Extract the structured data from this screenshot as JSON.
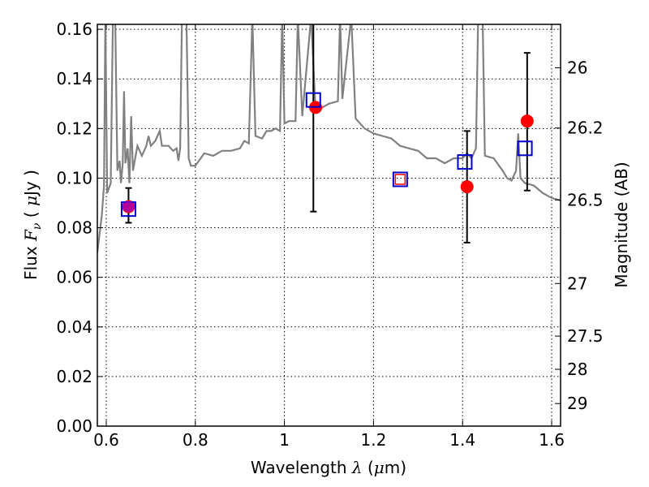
{
  "chart_data": {
    "type": "scatter",
    "xlabel": "Wavelength  λ (μm)",
    "ylabel": "Flux  Fν  ( μJy )",
    "y2label": "Magnitude (AB)",
    "xlim": [
      0.58,
      1.62
    ],
    "ylim": [
      0.0,
      0.162
    ],
    "grid": true,
    "x_ticks": [
      0.6,
      0.8,
      1.0,
      1.2,
      1.4,
      1.6
    ],
    "x_tick_labels": [
      "0.6",
      "0.8",
      "1",
      "1.2",
      "1.4",
      "1.6"
    ],
    "y_ticks": [
      0.0,
      0.02,
      0.04,
      0.06,
      0.08,
      0.1,
      0.12,
      0.14,
      0.16
    ],
    "y_tick_labels": [
      "0.00",
      "0.02",
      "0.04",
      "0.06",
      "0.08",
      "0.10",
      "0.12",
      "0.14",
      "0.16"
    ],
    "y2_ticks": [
      {
        "label": "26",
        "flux": 0.1445
      },
      {
        "label": "26.2",
        "flux": 0.1202
      },
      {
        "label": "26.5",
        "flux": 0.0912
      },
      {
        "label": "27",
        "flux": 0.0575
      },
      {
        "label": "27.5",
        "flux": 0.0363
      },
      {
        "label": "28",
        "flux": 0.0229
      },
      {
        "label": "29",
        "flux": 0.0091
      }
    ],
    "series": [
      {
        "kind": "spectrum",
        "color": "#808080",
        "points": [
          [
            0.58,
            0.07
          ],
          [
            0.59,
            0.085
          ],
          [
            0.595,
            0.097
          ],
          [
            0.598,
            0.165
          ],
          [
            0.602,
            0.094
          ],
          [
            0.61,
            0.098
          ],
          [
            0.615,
            0.165
          ],
          [
            0.62,
            0.165
          ],
          [
            0.625,
            0.103
          ],
          [
            0.63,
            0.107
          ],
          [
            0.633,
            0.098
          ],
          [
            0.637,
            0.106
          ],
          [
            0.64,
            0.135
          ],
          [
            0.643,
            0.106
          ],
          [
            0.648,
            0.112
          ],
          [
            0.652,
            0.098
          ],
          [
            0.656,
            0.125
          ],
          [
            0.66,
            0.103
          ],
          [
            0.67,
            0.113
          ],
          [
            0.68,
            0.109
          ],
          [
            0.69,
            0.113
          ],
          [
            0.695,
            0.117
          ],
          [
            0.7,
            0.113
          ],
          [
            0.71,
            0.115
          ],
          [
            0.72,
            0.119
          ],
          [
            0.725,
            0.113
          ],
          [
            0.74,
            0.113
          ],
          [
            0.75,
            0.111
          ],
          [
            0.758,
            0.112
          ],
          [
            0.762,
            0.107
          ],
          [
            0.766,
            0.112
          ],
          [
            0.77,
            0.165
          ],
          [
            0.78,
            0.165
          ],
          [
            0.785,
            0.108
          ],
          [
            0.79,
            0.105
          ],
          [
            0.8,
            0.105
          ],
          [
            0.82,
            0.11
          ],
          [
            0.84,
            0.109
          ],
          [
            0.86,
            0.111
          ],
          [
            0.88,
            0.111
          ],
          [
            0.9,
            0.112
          ],
          [
            0.91,
            0.115
          ],
          [
            0.92,
            0.114
          ],
          [
            0.928,
            0.165
          ],
          [
            0.935,
            0.117
          ],
          [
            0.95,
            0.116
          ],
          [
            0.96,
            0.119
          ],
          [
            0.97,
            0.119
          ],
          [
            0.98,
            0.12
          ],
          [
            0.99,
            0.119
          ],
          [
            0.995,
            0.165
          ],
          [
            1.0,
            0.122
          ],
          [
            1.01,
            0.123
          ],
          [
            1.025,
            0.123
          ],
          [
            1.03,
            0.165
          ],
          [
            1.04,
            0.125
          ],
          [
            1.06,
            0.165
          ],
          [
            1.07,
            0.127
          ],
          [
            1.08,
            0.128
          ],
          [
            1.1,
            0.13
          ],
          [
            1.12,
            0.131
          ],
          [
            1.125,
            0.165
          ],
          [
            1.13,
            0.132
          ],
          [
            1.15,
            0.165
          ],
          [
            1.16,
            0.124
          ],
          [
            1.18,
            0.12
          ],
          [
            1.2,
            0.118
          ],
          [
            1.22,
            0.117
          ],
          [
            1.24,
            0.116
          ],
          [
            1.26,
            0.113
          ],
          [
            1.28,
            0.112
          ],
          [
            1.3,
            0.111
          ],
          [
            1.32,
            0.108
          ],
          [
            1.34,
            0.108
          ],
          [
            1.36,
            0.106
          ],
          [
            1.38,
            0.108
          ],
          [
            1.4,
            0.108
          ],
          [
            1.41,
            0.11
          ],
          [
            1.42,
            0.108
          ],
          [
            1.43,
            0.112
          ],
          [
            1.435,
            0.165
          ],
          [
            1.445,
            0.165
          ],
          [
            1.45,
            0.109
          ],
          [
            1.47,
            0.108
          ],
          [
            1.49,
            0.103
          ],
          [
            1.5,
            0.1
          ],
          [
            1.51,
            0.099
          ],
          [
            1.52,
            0.103
          ],
          [
            1.525,
            0.118
          ],
          [
            1.53,
            0.1
          ],
          [
            1.54,
            0.098
          ],
          [
            1.56,
            0.097
          ],
          [
            1.58,
            0.094
          ],
          [
            1.6,
            0.092
          ],
          [
            1.62,
            0.091
          ]
        ]
      },
      {
        "kind": "observed",
        "marker": "circle",
        "color": "#ff0000",
        "points": [
          {
            "x": 0.65,
            "y": 0.0885
          },
          {
            "x": 1.07,
            "y": 0.1285
          },
          {
            "x": 1.26,
            "y": 0.0995
          },
          {
            "x": 1.41,
            "y": 0.0965
          },
          {
            "x": 1.545,
            "y": 0.123
          }
        ]
      },
      {
        "kind": "model",
        "marker": "square",
        "color": "#0000cc",
        "points": [
          {
            "x": 0.65,
            "y": 0.0875
          },
          {
            "x": 1.065,
            "y": 0.1315
          },
          {
            "x": 1.26,
            "y": 0.0995
          },
          {
            "x": 1.405,
            "y": 0.1065
          },
          {
            "x": 1.54,
            "y": 0.112
          }
        ]
      },
      {
        "kind": "errorbars",
        "color": "#000000",
        "points": [
          {
            "x": 0.65,
            "lo": 0.082,
            "hi": 0.096
          },
          {
            "x": 1.065,
            "lo": 0.0865,
            "hi": 0.165
          },
          {
            "x": 1.41,
            "lo": 0.074,
            "hi": 0.119
          },
          {
            "x": 1.545,
            "lo": 0.095,
            "hi": 0.1505
          }
        ]
      }
    ]
  }
}
